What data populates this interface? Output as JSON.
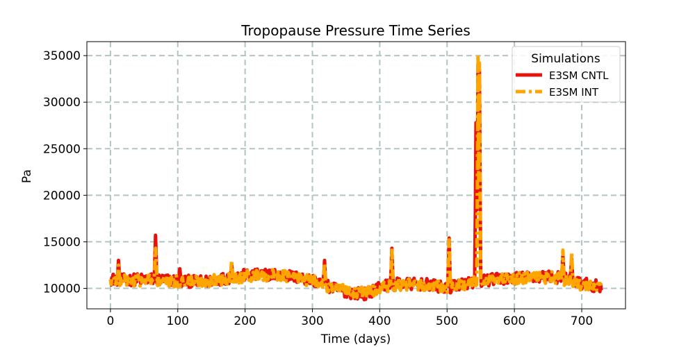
{
  "chart_data": {
    "type": "line",
    "title": "Tropopause Pressure Time Series",
    "xlabel": "Time (days)",
    "ylabel": "Pa",
    "xlim": [
      -35,
      765
    ],
    "ylim": [
      7800,
      36500
    ],
    "xticks": [
      0,
      100,
      200,
      300,
      400,
      500,
      600,
      700
    ],
    "yticks": [
      10000,
      15000,
      20000,
      25000,
      30000,
      35000
    ],
    "grid": true,
    "legend": {
      "title": "Simulations",
      "position": "top-right"
    },
    "x_range": [
      0,
      729
    ],
    "series": [
      {
        "name": "E3SM CNTL",
        "color": "#e8120c",
        "style": "solid",
        "baseline": [
          [
            0,
            11000
          ],
          [
            20,
            10900
          ],
          [
            60,
            11000
          ],
          [
            100,
            10800
          ],
          [
            140,
            10700
          ],
          [
            180,
            11200
          ],
          [
            200,
            11400
          ],
          [
            250,
            11500
          ],
          [
            300,
            10900
          ],
          [
            330,
            10000
          ],
          [
            360,
            9500
          ],
          [
            380,
            9400
          ],
          [
            400,
            10200
          ],
          [
            430,
            10500
          ],
          [
            470,
            10400
          ],
          [
            500,
            10000
          ],
          [
            520,
            10500
          ],
          [
            560,
            10900
          ],
          [
            600,
            11100
          ],
          [
            650,
            11300
          ],
          [
            680,
            11000
          ],
          [
            700,
            10500
          ],
          [
            729,
            10200
          ]
        ],
        "spikes": [
          [
            12,
            13000
          ],
          [
            67,
            15700
          ],
          [
            103,
            12100
          ],
          [
            180,
            12600
          ],
          [
            318,
            13000
          ],
          [
            418,
            14300
          ],
          [
            503,
            15400
          ],
          [
            543,
            27800
          ],
          [
            546,
            34000
          ],
          [
            548,
            33500
          ],
          [
            672,
            13500
          ],
          [
            685,
            13200
          ]
        ]
      },
      {
        "name": "E3SM INT",
        "color": "#ffa500",
        "style": "dashdot",
        "baseline": [
          [
            0,
            10900
          ],
          [
            20,
            10800
          ],
          [
            60,
            10900
          ],
          [
            100,
            10700
          ],
          [
            140,
            10800
          ],
          [
            180,
            11100
          ],
          [
            200,
            11300
          ],
          [
            250,
            11400
          ],
          [
            300,
            10800
          ],
          [
            330,
            10100
          ],
          [
            360,
            9600
          ],
          [
            380,
            9500
          ],
          [
            400,
            10100
          ],
          [
            430,
            10400
          ],
          [
            470,
            10300
          ],
          [
            500,
            10100
          ],
          [
            520,
            10400
          ],
          [
            560,
            10800
          ],
          [
            600,
            11000
          ],
          [
            650,
            11200
          ],
          [
            680,
            10900
          ],
          [
            700,
            10400
          ],
          [
            729,
            10100
          ]
        ],
        "spikes": [
          [
            12,
            12500
          ],
          [
            67,
            14300
          ],
          [
            180,
            13000
          ],
          [
            318,
            12700
          ],
          [
            418,
            14100
          ],
          [
            503,
            15200
          ],
          [
            546,
            35100
          ],
          [
            548,
            34200
          ],
          [
            672,
            14100
          ],
          [
            685,
            13800
          ]
        ]
      }
    ]
  }
}
